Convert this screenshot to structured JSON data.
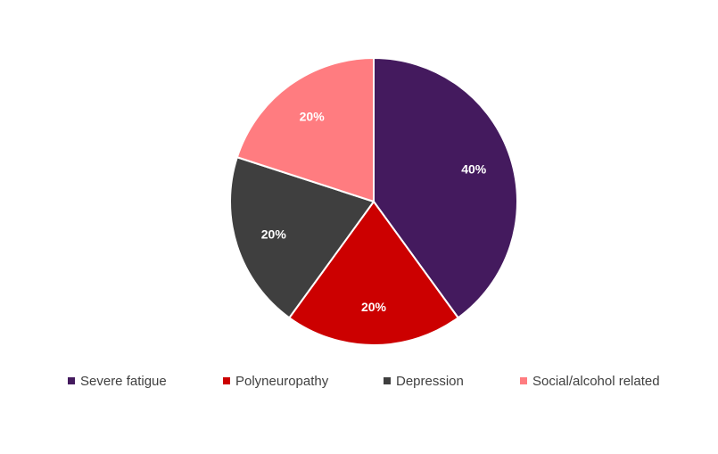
{
  "chart_data": {
    "type": "pie",
    "title": "",
    "categories": [
      "Severe fatigue",
      "Polyneuropathy",
      "Depression",
      "Social/alcohol related"
    ],
    "values": [
      40,
      20,
      20,
      20
    ],
    "data_labels": [
      "40%",
      "20%",
      "20%",
      "20%"
    ],
    "colors": [
      "#441a5e",
      "#cc0000",
      "#3f3f3f",
      "#ff7c80"
    ],
    "start_angle_deg": 0,
    "direction": "clockwise",
    "legend_position": "bottom",
    "slice_border_color": "#ffffff"
  }
}
